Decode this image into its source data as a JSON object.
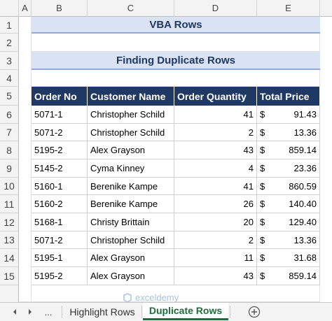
{
  "columns": [
    "A",
    "B",
    "C",
    "D",
    "E"
  ],
  "rows": [
    "1",
    "2",
    "3",
    "4",
    "5",
    "6",
    "7",
    "8",
    "9",
    "10",
    "11",
    "12",
    "13",
    "14",
    "15"
  ],
  "title": "VBA Rows",
  "subtitle": "Finding Duplicate Rows",
  "table": {
    "headers": [
      "Order No",
      "Customer Name",
      "Order Quantity",
      "Total Price"
    ],
    "rows": [
      {
        "order": "5071-1",
        "customer": "Christopher Schild",
        "qty": "41",
        "cur": "$",
        "price": "91.43"
      },
      {
        "order": "5071-2",
        "customer": "Christopher Schild",
        "qty": "2",
        "cur": "$",
        "price": "13.36"
      },
      {
        "order": "5195-2",
        "customer": "Alex Grayson",
        "qty": "43",
        "cur": "$",
        "price": "859.14"
      },
      {
        "order": "5145-2",
        "customer": "Cyma Kinney",
        "qty": "4",
        "cur": "$",
        "price": "23.36"
      },
      {
        "order": "5160-1",
        "customer": "Berenike Kampe",
        "qty": "41",
        "cur": "$",
        "price": "860.59"
      },
      {
        "order": "5160-2",
        "customer": "Berenike Kampe",
        "qty": "26",
        "cur": "$",
        "price": "140.40"
      },
      {
        "order": "5168-1",
        "customer": "Christy Brittain",
        "qty": "20",
        "cur": "$",
        "price": "129.40"
      },
      {
        "order": "5071-2",
        "customer": "Christopher Schild",
        "qty": "2",
        "cur": "$",
        "price": "13.36"
      },
      {
        "order": "5195-1",
        "customer": "Alex Grayson",
        "qty": "11",
        "cur": "$",
        "price": "31.68"
      },
      {
        "order": "5195-2",
        "customer": "Alex Grayson",
        "qty": "43",
        "cur": "$",
        "price": "859.14"
      }
    ]
  },
  "tabs": {
    "ellipsis": "...",
    "items": [
      "Highlight Rows",
      "Duplicate Rows"
    ],
    "active": "Duplicate Rows",
    "add": "+"
  },
  "watermark": "exceldemy",
  "colors": {
    "header_bg": "#203864",
    "band_bg": "#dae3f3",
    "active_tab": "#1e6b3c"
  }
}
